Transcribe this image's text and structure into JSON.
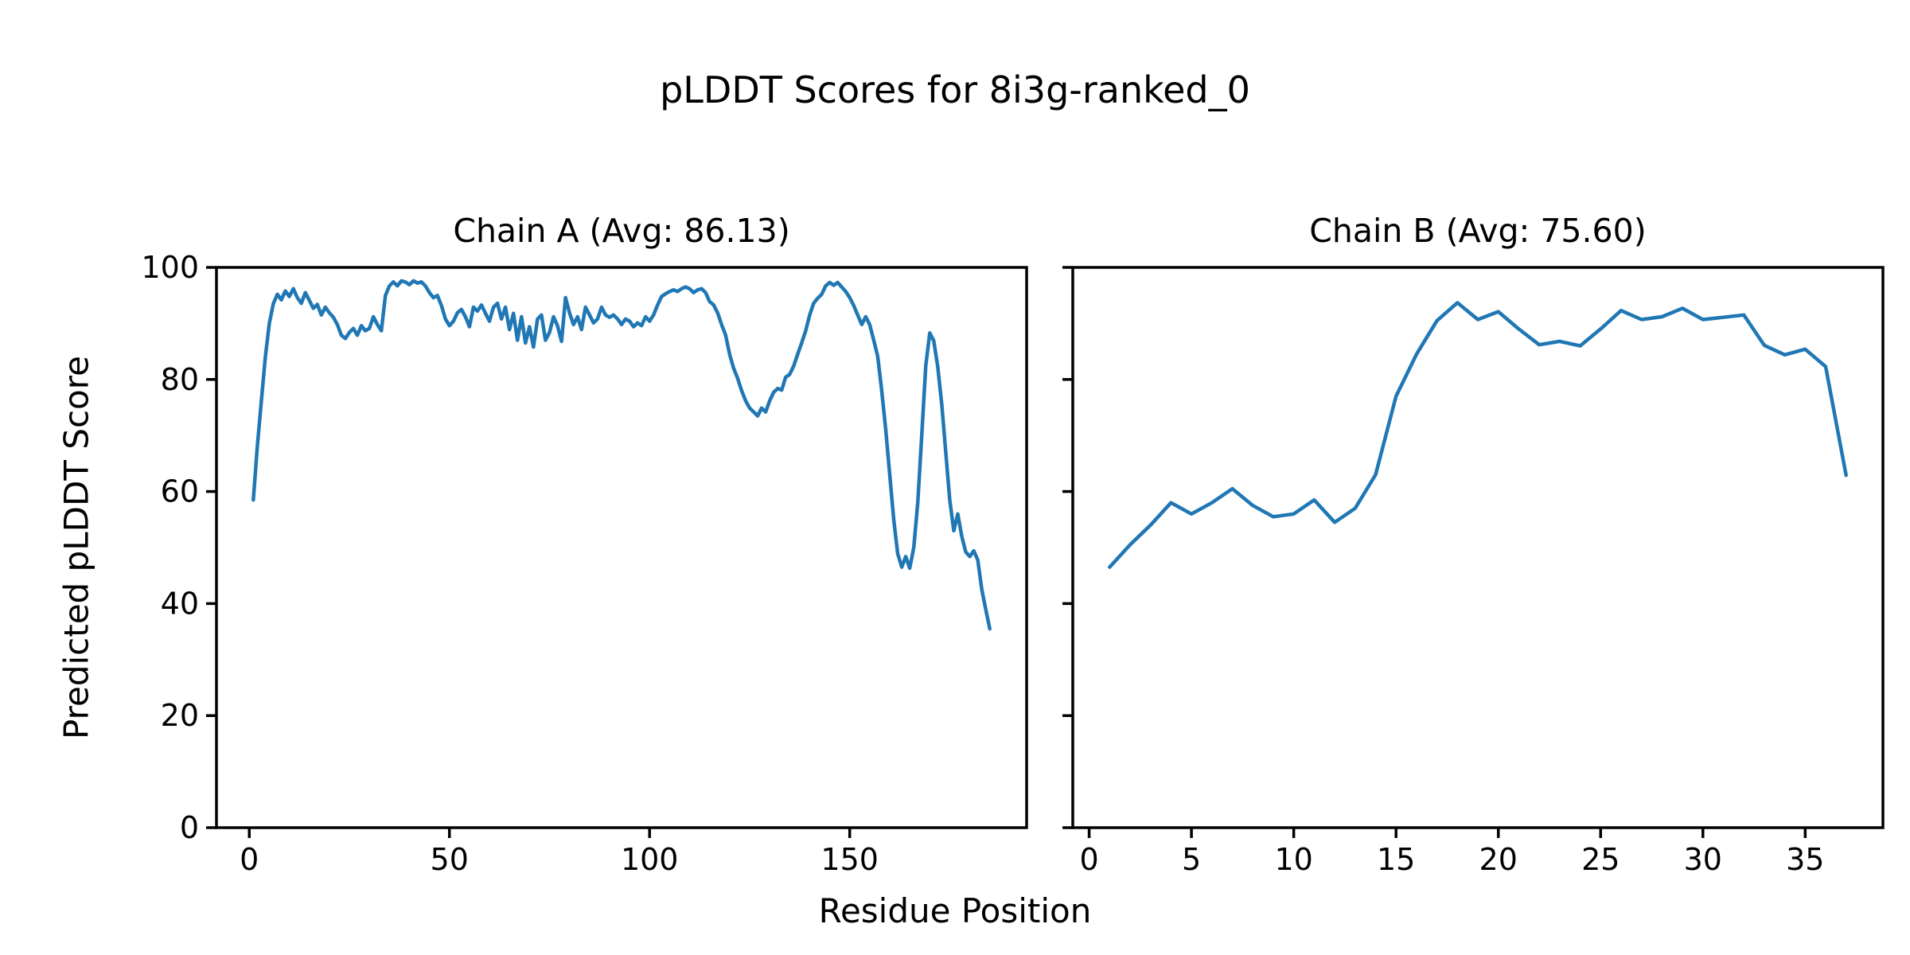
{
  "figure": {
    "suptitle": "pLDDT Scores for 8i3g-ranked_0",
    "xlabel": "Residue Position",
    "ylabel": "Predicted pLDDT Score",
    "background_color": "#ffffff",
    "text_color": "#000000",
    "spine_color": "#000000"
  },
  "chart_data": {
    "type": "line",
    "line_color": "#1f77b4",
    "grid": false,
    "legend": "none",
    "ylabel": "Predicted pLDDT Score",
    "xlabel": "Residue Position",
    "title": "pLDDT Scores for 8i3g-ranked_0",
    "subplots": [
      {
        "title": "Chain A (Avg: 86.13)",
        "avg": 86.13,
        "x_start": 1,
        "x_ticks": [
          0,
          50,
          100,
          150
        ],
        "y_ticks": [
          0,
          20,
          40,
          60,
          80,
          100
        ],
        "ylim": [
          0,
          100
        ],
        "show_y_tick_labels": true,
        "y_values": [
          58.5,
          68.0,
          76.0,
          84.0,
          90.0,
          93.5,
          95.2,
          94.2,
          95.8,
          94.8,
          96.2,
          94.6,
          93.6,
          95.5,
          94.1,
          92.7,
          93.4,
          91.5,
          92.9,
          91.9,
          91.1,
          89.8,
          87.9,
          87.3,
          88.4,
          89.1,
          87.9,
          89.6,
          88.7,
          89.1,
          91.2,
          89.8,
          88.7,
          95.0,
          96.7,
          97.4,
          96.7,
          97.6,
          97.4,
          96.9,
          97.6,
          97.2,
          97.4,
          96.7,
          95.5,
          94.6,
          95.0,
          93.2,
          90.8,
          89.6,
          90.4,
          91.9,
          92.5,
          91.2,
          89.4,
          92.9,
          92.2,
          93.3,
          91.8,
          90.4,
          92.9,
          93.6,
          90.8,
          92.9,
          88.9,
          91.8,
          87.0,
          91.2,
          86.5,
          89.4,
          85.8,
          90.8,
          91.5,
          87.0,
          88.4,
          91.2,
          89.6,
          86.8,
          94.6,
          91.9,
          89.8,
          91.2,
          88.9,
          92.9,
          91.5,
          90.1,
          90.8,
          92.9,
          91.5,
          91.1,
          91.5,
          90.8,
          89.8,
          90.8,
          90.4,
          89.4,
          90.1,
          89.6,
          91.2,
          90.4,
          91.5,
          93.3,
          94.8,
          95.3,
          95.7,
          96.0,
          95.7,
          96.2,
          96.5,
          96.2,
          95.5,
          96.0,
          96.2,
          95.5,
          93.9,
          93.3,
          91.9,
          89.8,
          87.9,
          84.5,
          82.0,
          80.2,
          78.0,
          76.2,
          74.9,
          74.2,
          73.5,
          74.9,
          74.2,
          76.2,
          77.7,
          78.4,
          78.1,
          80.4,
          80.9,
          82.4,
          84.5,
          86.5,
          88.7,
          91.5,
          93.6,
          94.5,
          95.2,
          96.7,
          97.3,
          96.8,
          97.3,
          96.5,
          95.7,
          94.6,
          93.2,
          91.5,
          89.8,
          91.2,
          89.8,
          87.0,
          84.1,
          78.0,
          71.0,
          63.0,
          55.0,
          48.9,
          46.5,
          48.4,
          46.3,
          50.0,
          58.0,
          70.0,
          82.5,
          88.3,
          86.9,
          82.3,
          75.5,
          67.0,
          58.5,
          53.0,
          56.0,
          52.0,
          49.2,
          48.4,
          49.4,
          47.8,
          42.5,
          38.9,
          35.5
        ]
      },
      {
        "title": "Chain B (Avg: 75.60)",
        "avg": 75.6,
        "x_start": 1,
        "x_ticks": [
          0,
          5,
          10,
          15,
          20,
          25,
          30,
          35
        ],
        "y_ticks": [
          0,
          20,
          40,
          60,
          80,
          100
        ],
        "ylim": [
          0,
          100
        ],
        "show_y_tick_labels": false,
        "y_values": [
          46.5,
          50.5,
          54.0,
          58.0,
          56.0,
          58.0,
          60.5,
          57.5,
          55.5,
          56.0,
          58.5,
          54.5,
          57.0,
          63.0,
          77.0,
          84.5,
          90.5,
          93.7,
          90.7,
          92.1,
          89.0,
          86.2,
          86.8,
          86.0,
          89.0,
          92.3,
          90.7,
          91.2,
          92.7,
          90.7,
          91.1,
          91.5,
          86.1,
          84.4,
          85.4,
          82.3,
          62.9
        ]
      }
    ]
  }
}
